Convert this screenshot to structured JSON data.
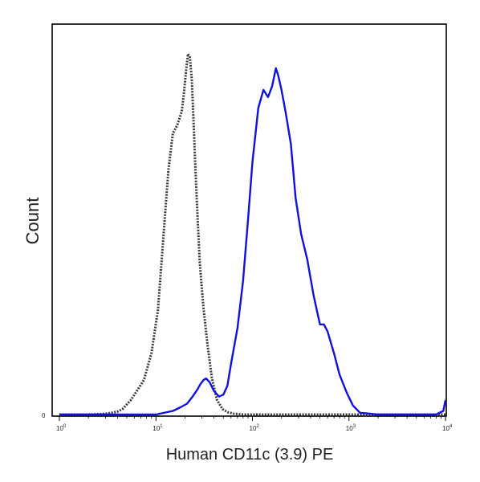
{
  "chart_data": {
    "type": "line",
    "xlabel": "Human CD11c (3.9) PE",
    "ylabel": "Count",
    "x_scale": "log",
    "xlim": [
      1,
      10000
    ],
    "ylim": [
      0,
      100
    ],
    "x_ticks": [
      {
        "value": 1,
        "base": "10",
        "exp": "0"
      },
      {
        "value": 10,
        "base": "10",
        "exp": "1"
      },
      {
        "value": 100,
        "base": "10",
        "exp": "2"
      },
      {
        "value": 1000,
        "base": "10",
        "exp": "3"
      },
      {
        "value": 10000,
        "base": "10",
        "exp": "4"
      }
    ],
    "y_tick_label": "0",
    "grid": false,
    "series": [
      {
        "color": "#3a3a3a",
        "dash": "dotted",
        "x": [
          1,
          2,
          3,
          4,
          4.5,
          5.5,
          6.5,
          7.5,
          9,
          10.5,
          12,
          13.5,
          15,
          16.5,
          17.5,
          18.5,
          19.5,
          20.5,
          21.5,
          22.5,
          23.5,
          24.5,
          25.5,
          27,
          28.5,
          31,
          34,
          38,
          43,
          49,
          56,
          65,
          80,
          110,
          200,
          500,
          1000,
          2000,
          5000,
          10000
        ],
        "y": [
          0,
          0,
          0.2,
          0.8,
          1.5,
          4,
          7,
          9.5,
          17,
          29,
          50,
          68,
          78,
          80,
          82,
          84,
          89,
          95,
          100,
          99,
          93,
          82,
          70,
          55,
          42,
          30,
          20,
          10,
          4,
          1.5,
          0.6,
          0.2,
          0,
          0,
          0,
          0,
          0,
          0,
          0,
          0
        ]
      },
      {
        "color": "#1010e0",
        "dash": "solid",
        "x": [
          1,
          5,
          10,
          15,
          18,
          21,
          24,
          27,
          29,
          31,
          33,
          36,
          40,
          45,
          50,
          55,
          60,
          70,
          80,
          90,
          100,
          115,
          130,
          145,
          160,
          175,
          185,
          200,
          220,
          250,
          280,
          320,
          370,
          430,
          500,
          550,
          600,
          700,
          800,
          950,
          1100,
          1300,
          2000,
          4000,
          8000,
          9500,
          10000
        ],
        "y": [
          0,
          0,
          0,
          1,
          2,
          3,
          5,
          7,
          8.5,
          9.5,
          10,
          9,
          6.5,
          5,
          5.5,
          8,
          14,
          24,
          37,
          54,
          70,
          85,
          90,
          88,
          91,
          96,
          94,
          90,
          84,
          75,
          60,
          50,
          43,
          33,
          25,
          25,
          23,
          17,
          11,
          6,
          2.5,
          0.5,
          0,
          0,
          0,
          1,
          4
        ]
      }
    ]
  }
}
